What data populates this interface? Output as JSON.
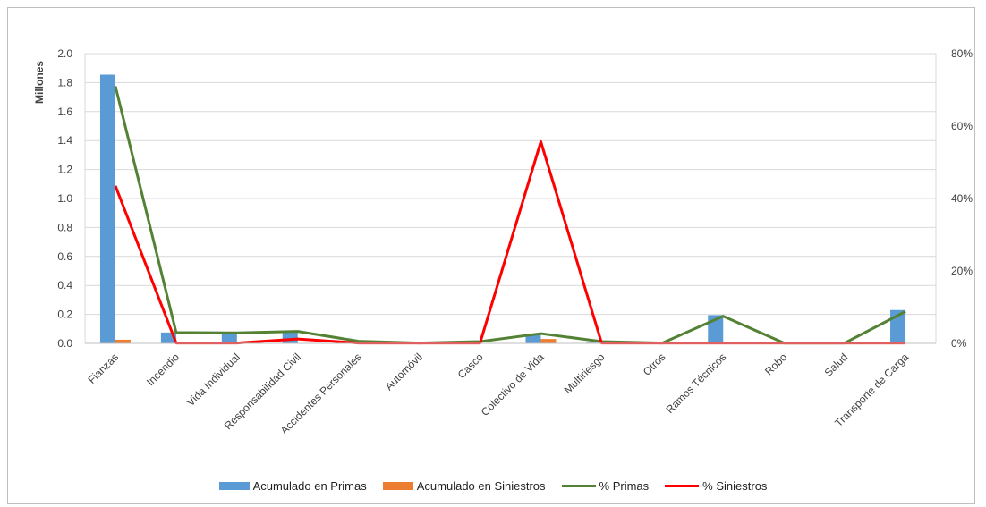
{
  "chart_data": {
    "type": "bar",
    "title": "",
    "categories": [
      "Fianzas",
      "Incendio",
      "Vida Individual",
      "Responsabilidad Civil",
      "Accidentes Personales",
      "Automóvil",
      "Casco",
      "Colectivo de Vida",
      "Multiriesgo",
      "Otros",
      "Ramos Técnicos",
      "Robo",
      "Salud",
      "Transporte de Carga"
    ],
    "y_left": {
      "label": "Millones",
      "ylim": [
        0,
        2.0
      ],
      "ticks": [
        "0.0",
        "0.2",
        "0.4",
        "0.6",
        "0.8",
        "1.0",
        "1.2",
        "1.4",
        "1.6",
        "1.8",
        "2.0"
      ]
    },
    "y_right": {
      "ylim": [
        0,
        80
      ],
      "ticks": [
        "0%",
        "20%",
        "40%",
        "60%",
        "80%"
      ]
    },
    "grid": true,
    "legend_position": "bottom",
    "series": [
      {
        "name": "Acumulado en Primas",
        "type": "bar",
        "axis": "left",
        "color": "#5b9bd5",
        "values": [
          1.855,
          0.075,
          0.075,
          0.075,
          0.005,
          0.0,
          0.01,
          0.06,
          0.005,
          0.0,
          0.195,
          0.0,
          0.0,
          0.23
        ]
      },
      {
        "name": "Acumulado en Siniestros",
        "type": "bar",
        "axis": "left",
        "color": "#ed7d31",
        "values": [
          0.025,
          0.0,
          0.0,
          0.0,
          0.0,
          0.0,
          0.0,
          0.03,
          0.0,
          0.0,
          0.0,
          0.0,
          0.0,
          0.0
        ]
      },
      {
        "name": "% Primas",
        "type": "line",
        "axis": "right",
        "color": "#548235",
        "values": [
          71,
          3,
          2.9,
          3.3,
          0.6,
          0.1,
          0.5,
          2.7,
          0.5,
          0.1,
          7.5,
          0.1,
          0.1,
          8.8
        ]
      },
      {
        "name": "% Siniestros",
        "type": "line",
        "axis": "right",
        "color": "#ff0000",
        "values": [
          43.5,
          0.1,
          0.1,
          1.2,
          0.1,
          0.1,
          0.1,
          55.7,
          0.1,
          0.1,
          0.1,
          0.1,
          0.1,
          0.1
        ]
      }
    ]
  }
}
